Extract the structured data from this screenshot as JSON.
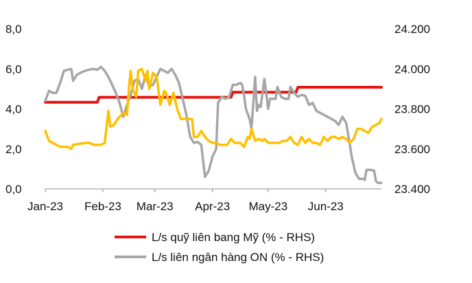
{
  "chart_data": {
    "type": "line",
    "title": "",
    "xlabel": "",
    "ylabel_left": "",
    "ylabel_right": "",
    "x_ticks": [
      "Jan-23",
      "Feb-23",
      "Mar-23",
      "Apr-23",
      "May-23",
      "Jun-23"
    ],
    "left_axis": {
      "ticks": [
        "0,0",
        "2,0",
        "4,0",
        "6,0",
        "8,0"
      ],
      "range": [
        0,
        8
      ]
    },
    "right_axis": {
      "ticks": [
        "23.400",
        "23.600",
        "23.800",
        "24.000",
        "24.200"
      ],
      "range": [
        23400,
        24200
      ]
    },
    "grid": false,
    "legend_position": "bottom",
    "series": [
      {
        "name": "L/s quỹ liên bang Mỹ (% - RHS)",
        "color": "#e8140f",
        "axis": "left",
        "points": [
          [
            0,
            4.33
          ],
          [
            28,
            4.33
          ],
          [
            29,
            4.58
          ],
          [
            70,
            4.58
          ],
          [
            71,
            4.58
          ],
          [
            100,
            4.58
          ],
          [
            101,
            4.83
          ],
          [
            135,
            4.83
          ],
          [
            136,
            5.08
          ],
          [
            181,
            5.08
          ]
        ]
      },
      {
        "name": "L/s liên ngân hàng ON (% - RHS)",
        "color": "#a6a6a6",
        "axis": "left",
        "points": [
          [
            0,
            4.4
          ],
          [
            2,
            4.9
          ],
          [
            4,
            4.8
          ],
          [
            6,
            4.8
          ],
          [
            8,
            5.3
          ],
          [
            10,
            5.9
          ],
          [
            12,
            5.95
          ],
          [
            14,
            6.0
          ],
          [
            15,
            5.4
          ],
          [
            17,
            5.7
          ],
          [
            20,
            5.85
          ],
          [
            23,
            5.95
          ],
          [
            26,
            6.0
          ],
          [
            28,
            5.95
          ],
          [
            30,
            6.1
          ],
          [
            32,
            5.9
          ],
          [
            34,
            5.6
          ],
          [
            36,
            5.2
          ],
          [
            38,
            4.8
          ],
          [
            40,
            4.3
          ],
          [
            42,
            3.6
          ],
          [
            44,
            4.2
          ],
          [
            46,
            4.7
          ],
          [
            48,
            5.4
          ],
          [
            50,
            5.5
          ],
          [
            52,
            5.0
          ],
          [
            54,
            5.7
          ],
          [
            56,
            5.1
          ],
          [
            58,
            5.2
          ],
          [
            60,
            5.6
          ],
          [
            62,
            6.0
          ],
          [
            64,
            5.9
          ],
          [
            66,
            5.8
          ],
          [
            68,
            6.0
          ],
          [
            70,
            5.7
          ],
          [
            72,
            5.3
          ],
          [
            74,
            4.5
          ],
          [
            76,
            3.7
          ],
          [
            78,
            2.6
          ],
          [
            80,
            2.3
          ],
          [
            82,
            2.35
          ],
          [
            84,
            2.2
          ],
          [
            86,
            0.6
          ],
          [
            88,
            0.9
          ],
          [
            90,
            1.6
          ],
          [
            92,
            2.0
          ],
          [
            93,
            4.3
          ],
          [
            95,
            4.6
          ],
          [
            97,
            4.5
          ],
          [
            99,
            4.6
          ],
          [
            101,
            5.2
          ],
          [
            103,
            5.2
          ],
          [
            105,
            5.3
          ],
          [
            106,
            5.2
          ],
          [
            107,
            4.7
          ],
          [
            108,
            4.0
          ],
          [
            110,
            3.5
          ],
          [
            111,
            3.0
          ],
          [
            113,
            5.6
          ],
          [
            114,
            3.9
          ],
          [
            115,
            4.2
          ],
          [
            116,
            4.1
          ],
          [
            118,
            5.5
          ],
          [
            120,
            4.0
          ],
          [
            121,
            4.5
          ],
          [
            124,
            4.5
          ],
          [
            125,
            5.1
          ],
          [
            127,
            4.6
          ],
          [
            129,
            4.5
          ],
          [
            131,
            4.5
          ],
          [
            132,
            5.1
          ],
          [
            134,
            4.8
          ],
          [
            136,
            4.6
          ],
          [
            138,
            4.7
          ],
          [
            140,
            4.65
          ],
          [
            142,
            4.2
          ],
          [
            144,
            4.3
          ],
          [
            146,
            3.9
          ],
          [
            148,
            3.8
          ],
          [
            150,
            3.7
          ],
          [
            152,
            3.6
          ],
          [
            154,
            3.5
          ],
          [
            156,
            3.4
          ],
          [
            158,
            3.2
          ],
          [
            160,
            3.6
          ],
          [
            162,
            3.3
          ],
          [
            164,
            2.2
          ],
          [
            165,
            1.6
          ],
          [
            167,
            0.8
          ],
          [
            169,
            0.5
          ],
          [
            171,
            0.5
          ],
          [
            172,
            0.45
          ],
          [
            173,
            0.95
          ],
          [
            175,
            0.95
          ],
          [
            177,
            0.92
          ],
          [
            178,
            0.4
          ],
          [
            179,
            0.3
          ],
          [
            181,
            0.3
          ]
        ]
      },
      {
        "name": "",
        "color": "#ffc000",
        "axis": "left",
        "points": [
          [
            0,
            2.9
          ],
          [
            2,
            2.4
          ],
          [
            4,
            2.3
          ],
          [
            6,
            2.2
          ],
          [
            8,
            2.1
          ],
          [
            12,
            2.1
          ],
          [
            14,
            2.0
          ],
          [
            15,
            2.2
          ],
          [
            18,
            2.25
          ],
          [
            22,
            2.3
          ],
          [
            24,
            2.3
          ],
          [
            26,
            2.2
          ],
          [
            30,
            2.2
          ],
          [
            32,
            2.3
          ],
          [
            34,
            3.9
          ],
          [
            35,
            3.1
          ],
          [
            37,
            3.2
          ],
          [
            39,
            3.5
          ],
          [
            42,
            3.8
          ],
          [
            44,
            3.7
          ],
          [
            45,
            5.0
          ],
          [
            46,
            5.9
          ],
          [
            47,
            5.0
          ],
          [
            49,
            4.6
          ],
          [
            50,
            5.9
          ],
          [
            52,
            6.0
          ],
          [
            54,
            5.4
          ],
          [
            55,
            5.9
          ],
          [
            56,
            5.0
          ],
          [
            58,
            5.8
          ],
          [
            60,
            5.6
          ],
          [
            62,
            4.2
          ],
          [
            64,
            4.9
          ],
          [
            65,
            4.8
          ],
          [
            67,
            4.2
          ],
          [
            69,
            4.8
          ],
          [
            71,
            4.0
          ],
          [
            73,
            3.5
          ],
          [
            75,
            3.5
          ],
          [
            79,
            3.5
          ],
          [
            80,
            2.6
          ],
          [
            82,
            2.6
          ],
          [
            84,
            2.9
          ],
          [
            86,
            2.6
          ],
          [
            88,
            2.4
          ],
          [
            90,
            2.3
          ],
          [
            92,
            2.3
          ],
          [
            94,
            2.2
          ],
          [
            98,
            2.2
          ],
          [
            100,
            2.5
          ],
          [
            102,
            2.3
          ],
          [
            105,
            2.3
          ],
          [
            107,
            2.1
          ],
          [
            109,
            2.6
          ],
          [
            110,
            2.5
          ],
          [
            111,
            3.0
          ],
          [
            113,
            2.4
          ],
          [
            115,
            2.5
          ],
          [
            117,
            2.4
          ],
          [
            118,
            2.5
          ],
          [
            120,
            2.3
          ],
          [
            126,
            2.3
          ],
          [
            128,
            2.4
          ],
          [
            130,
            2.4
          ],
          [
            132,
            2.6
          ],
          [
            134,
            2.3
          ],
          [
            136,
            2.2
          ],
          [
            138,
            2.6
          ],
          [
            140,
            2.3
          ],
          [
            142,
            2.5
          ],
          [
            144,
            2.3
          ],
          [
            146,
            2.3
          ],
          [
            148,
            2.2
          ],
          [
            150,
            2.6
          ],
          [
            152,
            2.4
          ],
          [
            154,
            2.6
          ],
          [
            156,
            2.6
          ],
          [
            158,
            2.5
          ],
          [
            160,
            2.6
          ],
          [
            162,
            2.5
          ],
          [
            164,
            2.3
          ],
          [
            166,
            2.5
          ],
          [
            168,
            3.0
          ],
          [
            170,
            3.0
          ],
          [
            172,
            2.9
          ],
          [
            174,
            2.8
          ],
          [
            176,
            3.1
          ],
          [
            178,
            3.2
          ],
          [
            180,
            3.3
          ],
          [
            181,
            3.5
          ]
        ]
      }
    ]
  }
}
